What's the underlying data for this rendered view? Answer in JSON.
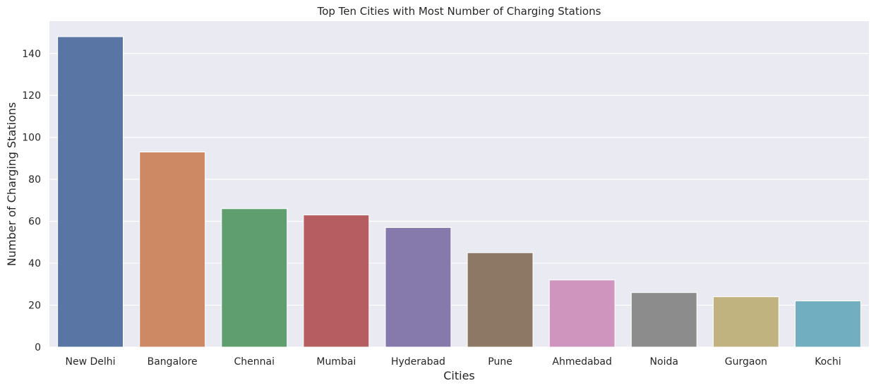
{
  "chart_data": {
    "type": "bar",
    "title": "Top Ten Cities with Most Number of Charging Stations",
    "xlabel": "Cities",
    "ylabel": "Number of Charging Stations",
    "categories": [
      "New Delhi",
      "Bangalore",
      "Chennai",
      "Mumbai",
      "Hyderabad",
      "Pune",
      "Ahmedabad",
      "Noida",
      "Gurgaon",
      "Kochi"
    ],
    "values": [
      148,
      93,
      66,
      63,
      57,
      45,
      32,
      26,
      24,
      22
    ],
    "colors": [
      "#5975a4",
      "#cc8963",
      "#5f9e6e",
      "#b55d60",
      "#857aab",
      "#8d7866",
      "#d095bf",
      "#8c8c8c",
      "#c1b37f",
      "#71aec0"
    ],
    "ylim": [
      0,
      155.4
    ],
    "yticks": [
      0,
      20,
      40,
      60,
      80,
      100,
      120,
      140
    ],
    "grid": true,
    "plot_background": "#eaeaf2",
    "grid_color": "#ffffff"
  }
}
